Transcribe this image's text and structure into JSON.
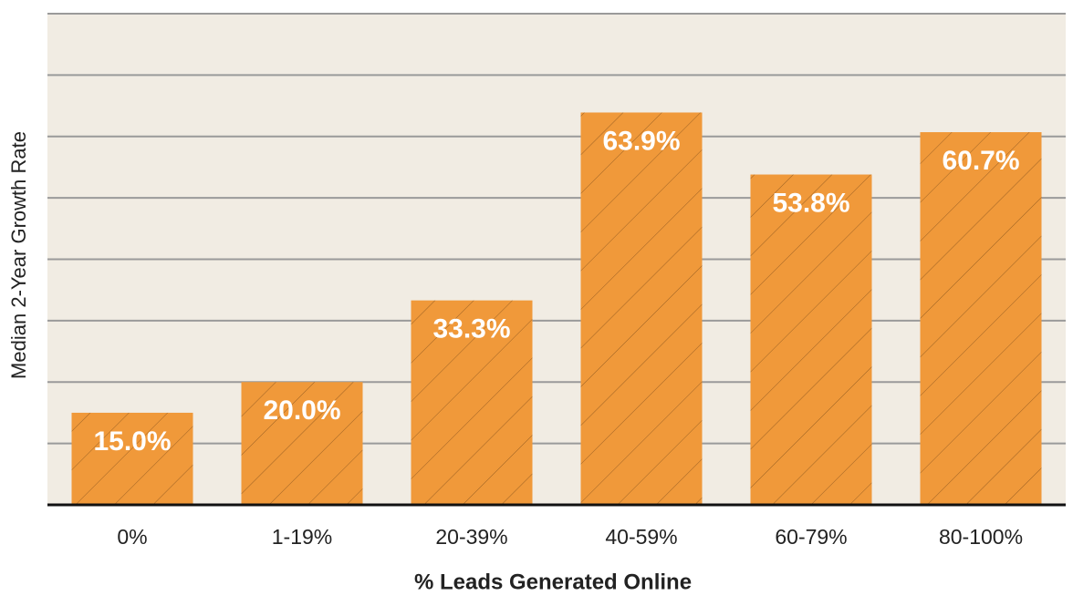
{
  "chart_data": {
    "type": "bar",
    "xlabel": "% Leads Generated Online",
    "ylabel": "Median 2-Year Growth Rate",
    "categories": [
      "0%",
      "1-19%",
      "20-39%",
      "40-59%",
      "60-79%",
      "80-100%"
    ],
    "values": [
      15.0,
      20.0,
      33.3,
      63.9,
      53.8,
      60.7
    ],
    "value_labels": [
      "15.0%",
      "20.0%",
      "33.3%",
      "63.9%",
      "53.8%",
      "60.7%"
    ],
    "color": "#f0993a",
    "ylim": [
      0,
      80
    ],
    "yticks": [
      0,
      10,
      20,
      30,
      40,
      50,
      60,
      70,
      80
    ],
    "ytick_labels": false,
    "grid": true
  }
}
